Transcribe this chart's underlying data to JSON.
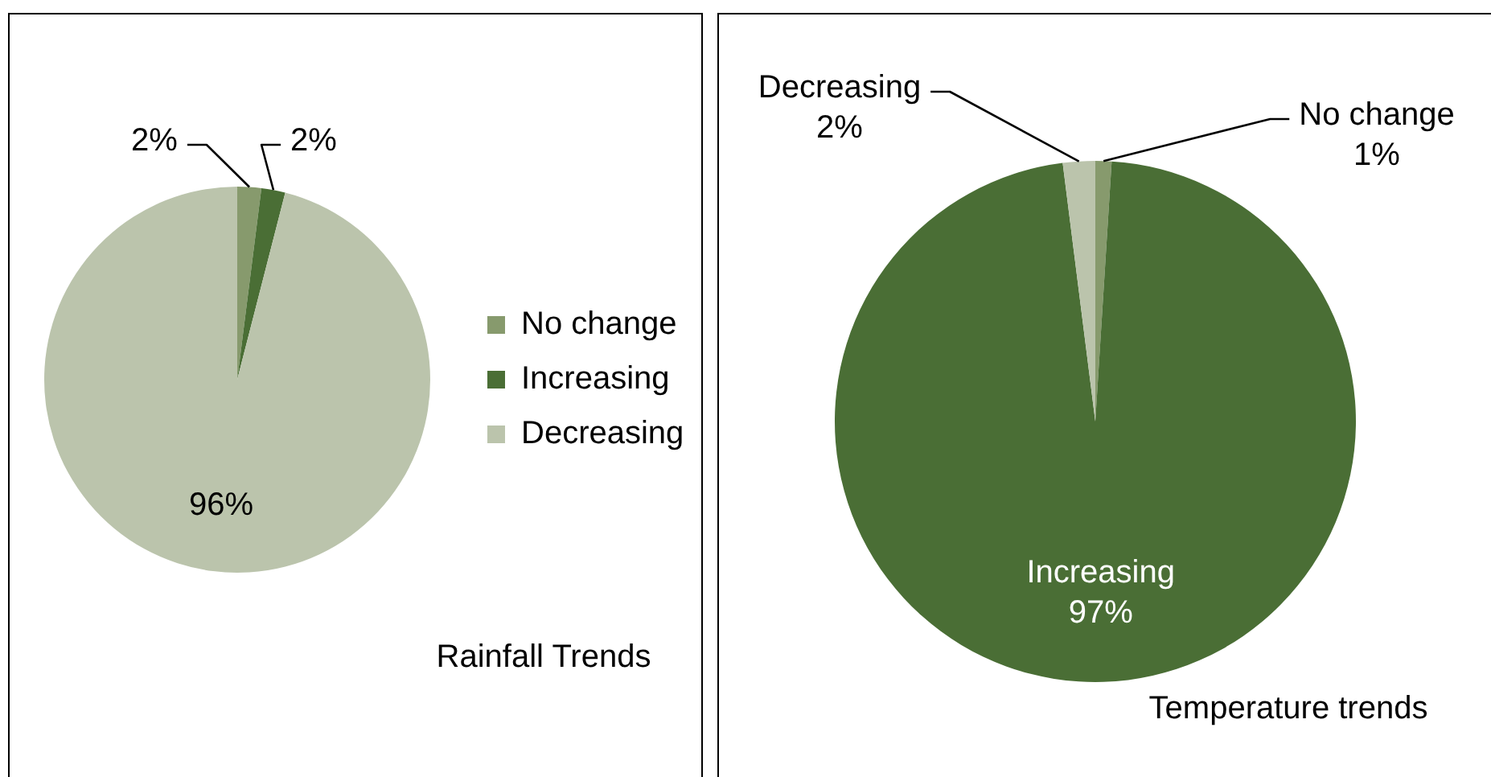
{
  "chart_data": [
    {
      "type": "pie",
      "title": "Rainfall Trends",
      "categories": [
        "No change",
        "Increasing",
        "Decreasing"
      ],
      "values": [
        2,
        2,
        96
      ],
      "colors": [
        "#879a6d",
        "#4a6e35",
        "#bbc4ac"
      ],
      "value_labels": [
        "2%",
        "2%",
        "96%"
      ],
      "legend": "right"
    },
    {
      "type": "pie",
      "title": "Temperature trends",
      "categories": [
        "No change",
        "Increasing",
        "Decreasing"
      ],
      "values": [
        1,
        97,
        2
      ],
      "colors": [
        "#879a6d",
        "#4a6e35",
        "#bbc4ac"
      ],
      "value_labels": [
        "1%",
        "97%",
        "2%"
      ],
      "legend": false
    }
  ]
}
